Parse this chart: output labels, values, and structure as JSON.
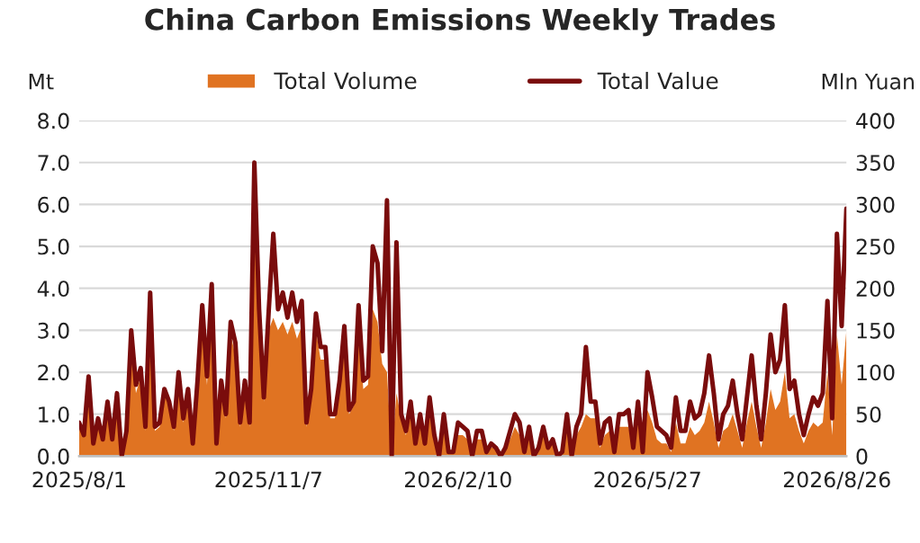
{
  "chart_data": {
    "type": "line",
    "title": "China Carbon Emissions Weekly Trades",
    "ylabel": "Mt",
    "y2label": "Mln Yuan",
    "categories": [
      "2025/8/1",
      null,
      null,
      null,
      null,
      null,
      null,
      null,
      null,
      null,
      null,
      null,
      null,
      null,
      null,
      null,
      null,
      null,
      null,
      null,
      null,
      null,
      null,
      null,
      null,
      null,
      null,
      null,
      null,
      null,
      null,
      null,
      null,
      null,
      null,
      null,
      null,
      null,
      null,
      null,
      "2025/11/7",
      null,
      null,
      null,
      null,
      null,
      null,
      null,
      null,
      null,
      null,
      null,
      null,
      null,
      null,
      null,
      null,
      null,
      null,
      null,
      null,
      null,
      null,
      null,
      null,
      null,
      null,
      null,
      null,
      null,
      null,
      null,
      null,
      null,
      null,
      null,
      null,
      null,
      null,
      null,
      "2026/2/10",
      null,
      null,
      null,
      null,
      null,
      null,
      null,
      null,
      null,
      null,
      null,
      null,
      null,
      null,
      null,
      null,
      null,
      null,
      null,
      null,
      null,
      null,
      null,
      null,
      null,
      null,
      null,
      null,
      null,
      null,
      null,
      null,
      null,
      null,
      null,
      null,
      null,
      null,
      null,
      "2026/5/27",
      null,
      null,
      null,
      null,
      null,
      null,
      null,
      null,
      null,
      null,
      null,
      null,
      null,
      null,
      null,
      null,
      null,
      null,
      null,
      null,
      null,
      null,
      null,
      null,
      null,
      null,
      null,
      null,
      null,
      null,
      null,
      null,
      null,
      null,
      null,
      null,
      null,
      null,
      null,
      "2026/8/26",
      null,
      null
    ],
    "series": [
      {
        "name": "Total Volume",
        "type": "area",
        "axis": "y",
        "color": "#e07322",
        "values": [
          0.7,
          0.5,
          1.7,
          0.3,
          0.8,
          0.4,
          1.2,
          0.4,
          1.4,
          0,
          0.6,
          2.7,
          1.5,
          1.9,
          0.6,
          3.5,
          0.6,
          0.7,
          1.5,
          1.2,
          0.6,
          1.8,
          0.8,
          1.5,
          0.3,
          1.6,
          3.2,
          1.7,
          3.7,
          0.3,
          1.6,
          0.9,
          2.9,
          2.4,
          0.7,
          1.6,
          0.7,
          6.3,
          3.2,
          1.3,
          3.0,
          3.3,
          3.0,
          3.2,
          2.9,
          3.2,
          2.8,
          3.1,
          0.7,
          1.4,
          3.0,
          2.3,
          2.3,
          0.9,
          0.9,
          1.6,
          2.7,
          1.0,
          1.2,
          3.1,
          1.6,
          1.7,
          3.5,
          3.2,
          2.2,
          2.0,
          0,
          1.5,
          0.9,
          0.5,
          1.1,
          0.3,
          0.9,
          0.3,
          1.2,
          0.4,
          0,
          0.9,
          0.1,
          0.1,
          0.5,
          0.5,
          0.4,
          0,
          0.4,
          0.4,
          0.1,
          0.2,
          0.2,
          0,
          0.2,
          0.4,
          0.7,
          0.5,
          0.1,
          0.5,
          0,
          0.2,
          0.5,
          0.2,
          0.3,
          0,
          0.1,
          0.7,
          0,
          0.5,
          0.7,
          1.0,
          0.9,
          0.9,
          0.2,
          0.5,
          0.6,
          0.1,
          0.7,
          0.7,
          0.7,
          0.2,
          0.9,
          0.1,
          1.1,
          0.8,
          0.4,
          0.3,
          0.3,
          0.1,
          0.8,
          0.3,
          0.3,
          0.7,
          0.5,
          0.6,
          0.8,
          1.3,
          0.8,
          0.2,
          0.6,
          0.7,
          1.0,
          0.6,
          0.2,
          0.8,
          1.3,
          0.7,
          0.2,
          0.8,
          1.6,
          1.1,
          1.3,
          2.0,
          0.9,
          1.0,
          0.6,
          0.3,
          0.6,
          0.8,
          0.7,
          0.8,
          2.0,
          0.5,
          2.9,
          1.7,
          3.0
        ]
      },
      {
        "name": "Total Value",
        "axis": "y2",
        "color": "#7a0c0c",
        "values": [
          40,
          25,
          95,
          15,
          45,
          20,
          65,
          20,
          75,
          0,
          30,
          150,
          85,
          105,
          35,
          195,
          35,
          40,
          80,
          65,
          35,
          100,
          45,
          80,
          15,
          90,
          180,
          95,
          205,
          15,
          90,
          50,
          160,
          135,
          40,
          90,
          40,
          350,
          175,
          70,
          170,
          265,
          175,
          195,
          165,
          195,
          160,
          185,
          40,
          80,
          170,
          130,
          130,
          50,
          50,
          90,
          155,
          55,
          65,
          180,
          90,
          95,
          250,
          230,
          125,
          305,
          0,
          255,
          50,
          30,
          65,
          15,
          50,
          15,
          70,
          25,
          0,
          50,
          5,
          5,
          40,
          35,
          30,
          0,
          30,
          30,
          5,
          15,
          10,
          0,
          10,
          30,
          50,
          40,
          5,
          35,
          0,
          10,
          35,
          10,
          20,
          0,
          5,
          50,
          0,
          35,
          50,
          130,
          65,
          65,
          15,
          40,
          45,
          5,
          50,
          50,
          55,
          10,
          65,
          5,
          100,
          70,
          35,
          30,
          25,
          10,
          70,
          30,
          30,
          65,
          45,
          50,
          75,
          120,
          75,
          20,
          50,
          60,
          90,
          50,
          20,
          70,
          120,
          60,
          20,
          75,
          145,
          100,
          115,
          180,
          80,
          90,
          50,
          25,
          50,
          70,
          60,
          75,
          185,
          45,
          265,
          155,
          295
        ]
      }
    ],
    "ylim": [
      0,
      8
    ],
    "yticks": [
      {
        "value": 0,
        "label": "0.0"
      },
      {
        "value": 1,
        "label": "1.0"
      },
      {
        "value": 2,
        "label": "2.0"
      },
      {
        "value": 3,
        "label": "3.0"
      },
      {
        "value": 4,
        "label": "4.0"
      },
      {
        "value": 5,
        "label": "5.0"
      },
      {
        "value": 6,
        "label": "6.0"
      },
      {
        "value": 7,
        "label": "7.0"
      },
      {
        "value": 8,
        "label": "8.0"
      }
    ],
    "y2lim": [
      0,
      400
    ],
    "y2ticks": [
      0,
      50,
      100,
      150,
      200,
      250,
      300,
      350,
      400
    ],
    "grid": "y",
    "legend": "top"
  }
}
